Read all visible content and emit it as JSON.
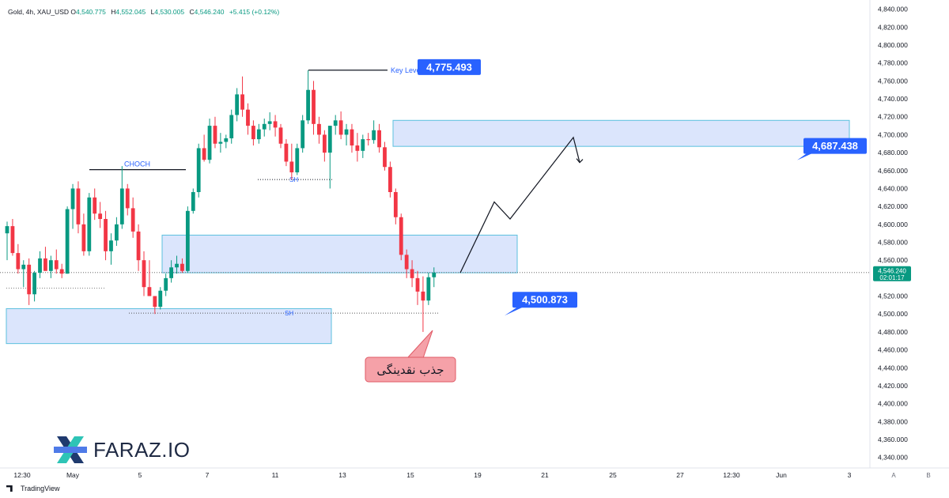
{
  "header": {
    "symbol": "Gold, 4h, XAU_USD",
    "open_label": "O",
    "open": "4,540.775",
    "high_label": "H",
    "high": "4,552.045",
    "low_label": "L",
    "low": "4,530.005",
    "close_label": "C",
    "close": "4,546.240",
    "change": "+5.415 (+0.12%)"
  },
  "brand": {
    "name": "FARAZ.IO"
  },
  "footer": {
    "tradingview": "TradingView"
  },
  "price_axis": {
    "ticks": [
      "4,840.000",
      "4,820.000",
      "4,800.000",
      "4,780.000",
      "4,760.000",
      "4,740.000",
      "4,720.000",
      "4,700.000",
      "4,680.000",
      "4,660.000",
      "4,640.000",
      "4,620.000",
      "4,600.000",
      "4,580.000",
      "4,560.000",
      "4,520.000",
      "4,500.000",
      "4,480.000",
      "4,460.000",
      "4,440.000",
      "4,420.000",
      "4,400.000",
      "4,380.000",
      "4,360.000",
      "4,340.000"
    ],
    "current_price": "4,546.240",
    "countdown": "02:01:17"
  },
  "time_axis": {
    "labels": [
      "12:30",
      "May",
      "5",
      "7",
      "11",
      "13",
      "15",
      "19",
      "21",
      "25",
      "27",
      "12:30",
      "Jun",
      "3"
    ],
    "corner_a": "A",
    "corner_b": "B"
  },
  "chart_data": {
    "type": "candlestick",
    "instrument": "Gold, 4h, XAU_USD",
    "y_range": [
      4330,
      4845
    ],
    "candles": [
      [
        4590,
        4603,
        4560,
        4598
      ],
      [
        4598,
        4606,
        4565,
        4568
      ],
      [
        4568,
        4578,
        4545,
        4550
      ],
      [
        4550,
        4560,
        4530,
        4555
      ],
      [
        4555,
        4562,
        4510,
        4522
      ],
      [
        4522,
        4548,
        4514,
        4546
      ],
      [
        4546,
        4570,
        4540,
        4562
      ],
      [
        4562,
        4575,
        4552,
        4548
      ],
      [
        4548,
        4565,
        4540,
        4560
      ],
      [
        4560,
        4572,
        4545,
        4550
      ],
      [
        4550,
        4556,
        4540,
        4545
      ],
      [
        4545,
        4620,
        4545,
        4617
      ],
      [
        4617,
        4645,
        4595,
        4640
      ],
      [
        4640,
        4648,
        4590,
        4600
      ],
      [
        4600,
        4612,
        4565,
        4570
      ],
      [
        4570,
        4635,
        4565,
        4630
      ],
      [
        4630,
        4640,
        4605,
        4612
      ],
      [
        4612,
        4625,
        4596,
        4606
      ],
      [
        4606,
        4615,
        4560,
        4570
      ],
      [
        4570,
        4590,
        4555,
        4582
      ],
      [
        4582,
        4608,
        4576,
        4600
      ],
      [
        4600,
        4665,
        4595,
        4640
      ],
      [
        4640,
        4645,
        4610,
        4618
      ],
      [
        4618,
        4630,
        4585,
        4592
      ],
      [
        4592,
        4600,
        4548,
        4560
      ],
      [
        4560,
        4570,
        4520,
        4530
      ],
      [
        4530,
        4560,
        4520,
        4520
      ],
      [
        4520,
        4520,
        4500,
        4508
      ],
      [
        4508,
        4530,
        4505,
        4526
      ],
      [
        4526,
        4545,
        4520,
        4540
      ],
      [
        4540,
        4560,
        4535,
        4552
      ],
      [
        4552,
        4565,
        4545,
        4556
      ],
      [
        4556,
        4562,
        4546,
        4548
      ],
      [
        4548,
        4620,
        4546,
        4615
      ],
      [
        4615,
        4640,
        4612,
        4636
      ],
      [
        4636,
        4690,
        4630,
        4685
      ],
      [
        4685,
        4700,
        4670,
        4672
      ],
      [
        4672,
        4718,
        4668,
        4710
      ],
      [
        4710,
        4720,
        4685,
        4690
      ],
      [
        4690,
        4702,
        4680,
        4692
      ],
      [
        4692,
        4700,
        4685,
        4696
      ],
      [
        4696,
        4728,
        4690,
        4722
      ],
      [
        4722,
        4752,
        4715,
        4745
      ],
      [
        4745,
        4765,
        4720,
        4728
      ],
      [
        4728,
        4735,
        4700,
        4710
      ],
      [
        4710,
        4716,
        4688,
        4695
      ],
      [
        4695,
        4712,
        4690,
        4706
      ],
      [
        4706,
        4718,
        4698,
        4712
      ],
      [
        4712,
        4725,
        4705,
        4715
      ],
      [
        4715,
        4722,
        4698,
        4708
      ],
      [
        4708,
        4712,
        4685,
        4690
      ],
      [
        4690,
        4695,
        4665,
        4670
      ],
      [
        4670,
        4690,
        4650,
        4658
      ],
      [
        4658,
        4690,
        4655,
        4685
      ],
      [
        4685,
        4722,
        4680,
        4716
      ],
      [
        4716,
        4772,
        4712,
        4750
      ],
      [
        4750,
        4760,
        4700,
        4712
      ],
      [
        4712,
        4720,
        4690,
        4700
      ],
      [
        4700,
        4705,
        4670,
        4680
      ],
      [
        4680,
        4710,
        4640,
        4710
      ],
      [
        4710,
        4722,
        4700,
        4716
      ],
      [
        4716,
        4726,
        4695,
        4700
      ],
      [
        4700,
        4712,
        4688,
        4706
      ],
      [
        4706,
        4712,
        4680,
        4688
      ],
      [
        4688,
        4702,
        4670,
        4682
      ],
      [
        4682,
        4700,
        4674,
        4695
      ],
      [
        4695,
        4702,
        4688,
        4694
      ],
      [
        4694,
        4716,
        4690,
        4705
      ],
      [
        4705,
        4712,
        4680,
        4686
      ],
      [
        4686,
        4692,
        4660,
        4664
      ],
      [
        4664,
        4670,
        4630,
        4636
      ],
      [
        4636,
        4640,
        4600,
        4608
      ],
      [
        4608,
        4612,
        4560,
        4566
      ],
      [
        4566,
        4572,
        4540,
        4550
      ],
      [
        4550,
        4560,
        4530,
        4540
      ],
      [
        4540,
        4548,
        4510,
        4525
      ],
      [
        4525,
        4542,
        4480,
        4515
      ],
      [
        4515,
        4546,
        4510,
        4541
      ],
      [
        4541,
        4552,
        4530,
        4546
      ]
    ],
    "zones": [
      {
        "type": "demand",
        "top": 4716,
        "bottom": 4687
      },
      {
        "type": "demand",
        "top": 4588,
        "bottom": 4546
      },
      {
        "type": "demand",
        "top": 4506,
        "bottom": 4467
      }
    ],
    "levels": [
      {
        "label": "Key Level",
        "price": 4772
      },
      {
        "label": "CHOCH",
        "price": 4661
      },
      {
        "label": "SH",
        "price": 4650
      },
      {
        "label": "SH",
        "price": 4501
      }
    ],
    "projection": [
      4546,
      4625,
      4606,
      4697,
      4669
    ],
    "badges": [
      {
        "text": "4,775.493",
        "price": 4775.493
      },
      {
        "text": "4,687.438",
        "price": 4687.438
      },
      {
        "text": "4,500.873",
        "price": 4500.873
      }
    ],
    "annotation": {
      "text": "جذب نقدینگی"
    },
    "current_price": 4546.24,
    "colors": {
      "up": "#089981",
      "down": "#f23645",
      "zone_fill": "#cfdcfb",
      "zone_stroke": "#5bc0de",
      "badge": "#2962ff",
      "callout": "#f5a1a8"
    }
  }
}
